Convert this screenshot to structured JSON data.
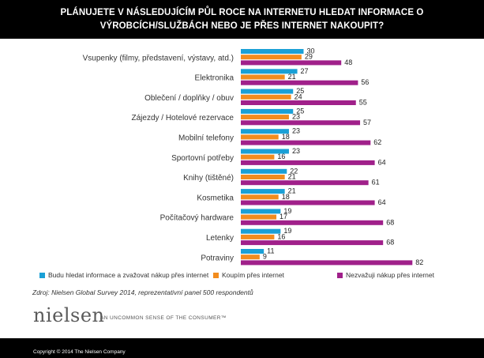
{
  "title": {
    "line1": "PLÁNUJETE V NÁSLEDUJÍCÍM PŮL ROCE NA INTERNETU HLEDAT INFORMACE O",
    "line2": "VÝROBCÍCH/SLUŽBÁCH NEBO JE PŘES INTERNET NAKOUPIT?"
  },
  "chart_data": {
    "type": "bar",
    "orientation": "horizontal",
    "categories": [
      "Vsupenky (filmy, představení, výstavy, atd.)",
      "Elektronika",
      "Oblečení / doplňky / obuv",
      "Zájezdy / Hotelové rezervace",
      "Mobilní telefony",
      "Sportovní potřeby",
      "Knihy (tištěné)",
      "Kosmetika",
      "Počítačový hardware",
      "Letenky",
      "Potraviny"
    ],
    "series": [
      {
        "name": "Budu hledat informace a zvažovat nákup přes internet",
        "color": "#1aa0d6",
        "values": [
          30,
          27,
          25,
          25,
          23,
          23,
          22,
          21,
          19,
          19,
          11
        ]
      },
      {
        "name": "Koupím přes internet",
        "color": "#f28c1e",
        "values": [
          29,
          21,
          24,
          23,
          18,
          16,
          21,
          18,
          17,
          16,
          9
        ]
      },
      {
        "name": "Nezvažuji nákup přes internet",
        "color": "#a0208a",
        "values": [
          48,
          56,
          55,
          57,
          62,
          64,
          61,
          64,
          68,
          68,
          82
        ]
      }
    ],
    "xlim": [
      0,
      100
    ],
    "grid": false,
    "legend_position": "bottom"
  },
  "source": "Zdroj: Nielsen Global Survey 2014, reprezentativní panel 500 respondentů",
  "logo": {
    "text": "nielsen",
    "tagline": "AN UNCOMMON SENSE OF THE CONSUMER™"
  },
  "copyright": "Copyright © 2014 The Nielsen Company"
}
